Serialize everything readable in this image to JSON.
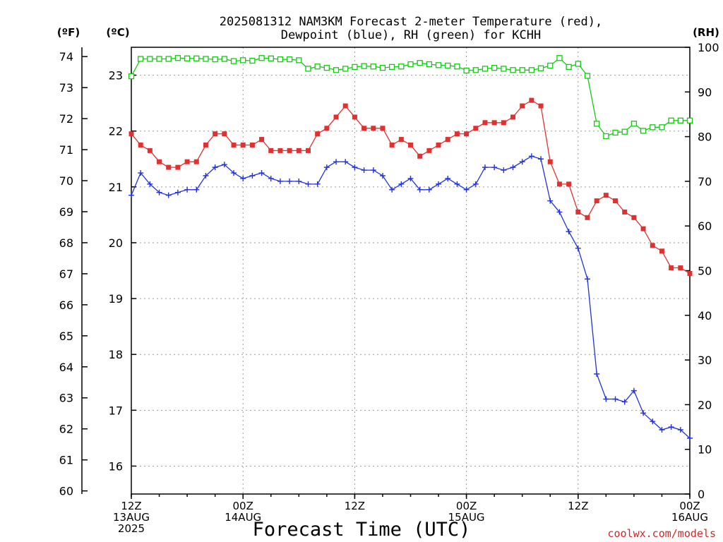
{
  "chart_data": {
    "type": "line",
    "title_line1": "2025081312 NAM3KM Forecast 2-meter Temperature (red),",
    "title_line2": "Dewpoint (blue), RH (green) for KCHH",
    "xlabel": "Forecast Time (UTC)",
    "credit": "coolwx.com/models",
    "unit_labels": {
      "fahrenheit": "(ºF)",
      "celsius": "(ºC)",
      "rh": "(RH)"
    },
    "x_range_hours": [
      0,
      60
    ],
    "x_ticks": [
      {
        "hour": 0,
        "lines": [
          "12Z",
          "13AUG",
          "2025"
        ]
      },
      {
        "hour": 12,
        "lines": [
          "00Z",
          "14AUG"
        ]
      },
      {
        "hour": 24,
        "lines": [
          "12Z"
        ]
      },
      {
        "hour": 36,
        "lines": [
          "00Z",
          "15AUG"
        ]
      },
      {
        "hour": 48,
        "lines": [
          "12Z"
        ]
      },
      {
        "hour": 60,
        "lines": [
          "00Z",
          "16AUG"
        ]
      }
    ],
    "y_celsius": {
      "range": [
        15.5,
        23.5
      ],
      "ticks": [
        16,
        17,
        18,
        19,
        20,
        21,
        22,
        23
      ]
    },
    "y_fahrenheit": {
      "range": [
        59.9,
        74.3
      ],
      "ticks": [
        60,
        61,
        62,
        63,
        64,
        65,
        66,
        67,
        68,
        69,
        70,
        71,
        72,
        73,
        74
      ]
    },
    "y_rh": {
      "range": [
        0,
        100
      ],
      "ticks": [
        0,
        10,
        20,
        30,
        40,
        50,
        60,
        70,
        80,
        90,
        100
      ]
    },
    "grid": true,
    "colors": {
      "temperature": "#e03131",
      "dewpoint": "#2233dd",
      "rh": "#11cc11"
    },
    "series": [
      {
        "name": "Temperature (red)",
        "unit": "°C",
        "marker": "filled-square",
        "x": [
          0,
          1,
          2,
          3,
          4,
          5,
          6,
          7,
          8,
          9,
          10,
          11,
          12,
          13,
          14,
          15,
          16,
          17,
          18,
          19,
          20,
          21,
          22,
          23,
          24,
          25,
          26,
          27,
          28,
          29,
          30,
          31,
          32,
          33,
          34,
          35,
          36,
          37,
          38,
          39,
          40,
          41,
          42,
          43,
          44,
          45,
          46,
          47,
          48,
          49,
          50,
          51,
          52,
          53,
          54,
          55,
          56,
          57,
          58,
          59,
          60
        ],
        "values": [
          21.95,
          21.75,
          21.65,
          21.45,
          21.35,
          21.35,
          21.45,
          21.45,
          21.75,
          21.95,
          21.95,
          21.75,
          21.75,
          21.75,
          21.85,
          21.65,
          21.65,
          21.65,
          21.65,
          21.65,
          21.95,
          22.05,
          22.25,
          22.45,
          22.25,
          22.05,
          22.05,
          22.05,
          21.75,
          21.85,
          21.75,
          21.55,
          21.65,
          21.75,
          21.85,
          21.95,
          21.95,
          22.05,
          22.15,
          22.15,
          22.15,
          22.25,
          22.45,
          22.55,
          22.45,
          21.45,
          21.05,
          21.05,
          20.55,
          20.45,
          20.75,
          20.85,
          20.75,
          20.55,
          20.45,
          20.25,
          19.95,
          19.85,
          19.55,
          19.55,
          19.45
        ]
      },
      {
        "name": "Dewpoint (blue)",
        "unit": "°C",
        "marker": "plus",
        "x": [
          0,
          1,
          2,
          3,
          4,
          5,
          6,
          7,
          8,
          9,
          10,
          11,
          12,
          13,
          14,
          15,
          16,
          17,
          18,
          19,
          20,
          21,
          22,
          23,
          24,
          25,
          26,
          27,
          28,
          29,
          30,
          31,
          32,
          33,
          34,
          35,
          36,
          37,
          38,
          39,
          40,
          41,
          42,
          43,
          44,
          45,
          46,
          47,
          48,
          49,
          50,
          51,
          52,
          53,
          54,
          55,
          56,
          57,
          58,
          59,
          60
        ],
        "values": [
          20.85,
          21.25,
          21.05,
          20.9,
          20.85,
          20.9,
          20.95,
          20.95,
          21.2,
          21.35,
          21.4,
          21.25,
          21.15,
          21.2,
          21.25,
          21.15,
          21.1,
          21.1,
          21.1,
          21.05,
          21.05,
          21.35,
          21.45,
          21.45,
          21.35,
          21.3,
          21.3,
          21.2,
          20.95,
          21.05,
          21.15,
          20.95,
          20.95,
          21.05,
          21.15,
          21.05,
          20.95,
          21.05,
          21.35,
          21.35,
          21.3,
          21.35,
          21.45,
          21.55,
          21.5,
          20.75,
          20.55,
          20.2,
          19.9,
          19.35,
          17.65,
          17.2,
          17.2,
          17.15,
          17.35,
          16.95,
          16.8,
          16.65,
          16.7,
          16.65,
          16.5
        ]
      },
      {
        "name": "RH (green)",
        "unit": "%",
        "marker": "open-square",
        "x": [
          0,
          1,
          2,
          3,
          4,
          5,
          6,
          7,
          8,
          9,
          10,
          11,
          12,
          13,
          14,
          15,
          16,
          17,
          18,
          19,
          20,
          21,
          22,
          23,
          24,
          25,
          26,
          27,
          28,
          29,
          30,
          31,
          32,
          33,
          34,
          35,
          36,
          37,
          38,
          39,
          40,
          41,
          42,
          43,
          44,
          45,
          46,
          47,
          48,
          49,
          50,
          51,
          52,
          53,
          54,
          55,
          56,
          57,
          58,
          59,
          60
        ],
        "values": [
          93.5,
          97.4,
          97.4,
          97.4,
          97.4,
          97.6,
          97.5,
          97.5,
          97.4,
          97.3,
          97.4,
          96.9,
          97.1,
          97.0,
          97.6,
          97.5,
          97.3,
          97.3,
          97.1,
          95.2,
          95.7,
          95.4,
          94.9,
          95.2,
          95.6,
          95.8,
          95.7,
          95.4,
          95.6,
          95.7,
          96.2,
          96.5,
          96.2,
          96.0,
          95.9,
          95.7,
          94.8,
          94.9,
          95.2,
          95.4,
          95.2,
          94.9,
          94.9,
          94.9,
          95.3,
          95.9,
          97.6,
          95.6,
          96.3,
          93.6,
          82.9,
          80.1,
          80.9,
          81.1,
          82.9,
          81.3,
          82.1,
          82.1,
          83.6,
          83.6,
          83.6
        ]
      }
    ]
  }
}
